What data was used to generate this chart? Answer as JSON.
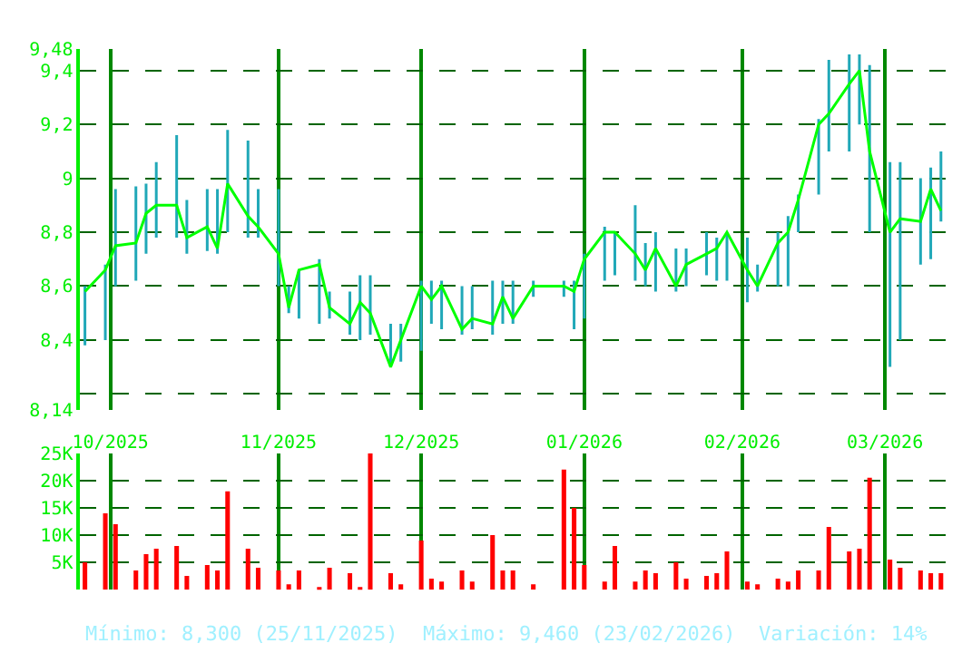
{
  "chart_data": [
    {
      "type": "line",
      "tick_labels": "y",
      "grid": true,
      "x": [
        "2025-09-26",
        "2025-09-30",
        "2025-10-02",
        "2025-10-06",
        "2025-10-08",
        "2025-10-10",
        "2025-10-14",
        "2025-10-16",
        "2025-10-20",
        "2025-10-22",
        "2025-10-24",
        "2025-10-28",
        "2025-10-30",
        "2025-11-03",
        "2025-11-05",
        "2025-11-07",
        "2025-11-11",
        "2025-11-13",
        "2025-11-17",
        "2025-11-19",
        "2025-11-21",
        "2025-11-25",
        "2025-11-27",
        "2025-12-01",
        "2025-12-03",
        "2025-12-05",
        "2025-12-09",
        "2025-12-11",
        "2025-12-15",
        "2025-12-17",
        "2025-12-19",
        "2025-12-23",
        "2025-12-29",
        "2025-12-31",
        "2026-01-02",
        "2026-01-06",
        "2026-01-08",
        "2026-01-12",
        "2026-01-14",
        "2026-01-16",
        "2026-01-20",
        "2026-01-22",
        "2026-01-26",
        "2026-01-28",
        "2026-01-30",
        "2026-02-03",
        "2026-02-05",
        "2026-02-09",
        "2026-02-11",
        "2026-02-13",
        "2026-02-17",
        "2026-02-19",
        "2026-02-23",
        "2026-02-25",
        "2026-02-27",
        "2026-03-03",
        "2026-03-05",
        "2026-03-09",
        "2026-03-11",
        "2026-03-13"
      ],
      "series": [
        {
          "color": "#00ff00",
          "values": [
            8.58,
            8.66,
            8.75,
            8.76,
            8.87,
            8.9,
            8.9,
            8.78,
            8.82,
            8.74,
            8.98,
            8.86,
            8.82,
            8.72,
            8.52,
            8.66,
            8.68,
            8.52,
            8.46,
            8.54,
            8.5,
            8.3,
            8.4,
            8.6,
            8.55,
            8.6,
            8.44,
            8.48,
            8.46,
            8.56,
            8.48,
            8.6,
            8.6,
            8.58,
            8.7,
            8.8,
            8.8,
            8.72,
            8.66,
            8.74,
            8.6,
            8.68,
            8.72,
            8.74,
            8.8,
            8.66,
            8.6,
            8.76,
            8.8,
            8.92,
            9.2,
            9.24,
            9.35,
            9.4,
            9.1,
            8.8,
            8.85,
            8.84,
            8.96,
            8.88
          ],
          "errors": [
            [
              8.38,
              8.6
            ],
            [
              8.4,
              8.68
            ],
            [
              8.6,
              8.96
            ],
            [
              8.62,
              8.97
            ],
            [
              8.72,
              8.98
            ],
            [
              8.78,
              9.06
            ],
            [
              8.78,
              9.16
            ],
            [
              8.72,
              8.92
            ],
            [
              8.73,
              8.96
            ],
            [
              8.72,
              8.96
            ],
            [
              8.8,
              9.18
            ],
            [
              8.78,
              9.14
            ],
            [
              8.78,
              8.96
            ],
            [
              8.6,
              8.96
            ],
            [
              8.5,
              8.6
            ],
            [
              8.48,
              8.66
            ],
            [
              8.46,
              8.7
            ],
            [
              8.48,
              8.58
            ],
            [
              8.42,
              8.58
            ],
            [
              8.4,
              8.64
            ],
            [
              8.42,
              8.64
            ],
            [
              8.3,
              8.46
            ],
            [
              8.32,
              8.46
            ],
            [
              8.36,
              8.62
            ],
            [
              8.46,
              8.62
            ],
            [
              8.44,
              8.62
            ],
            [
              8.42,
              8.6
            ],
            [
              8.44,
              8.6
            ],
            [
              8.42,
              8.62
            ],
            [
              8.46,
              8.62
            ],
            [
              8.46,
              8.62
            ],
            [
              8.56,
              8.62
            ],
            [
              8.56,
              8.62
            ],
            [
              8.44,
              8.62
            ],
            [
              8.48,
              8.72
            ],
            [
              8.62,
              8.82
            ],
            [
              8.64,
              8.8
            ],
            [
              8.62,
              8.9
            ],
            [
              8.6,
              8.76
            ],
            [
              8.58,
              8.8
            ],
            [
              8.58,
              8.74
            ],
            [
              8.6,
              8.74
            ],
            [
              8.64,
              8.8
            ],
            [
              8.62,
              8.78
            ],
            [
              8.62,
              8.8
            ],
            [
              8.54,
              8.78
            ],
            [
              8.58,
              8.68
            ],
            [
              8.6,
              8.8
            ],
            [
              8.6,
              8.86
            ],
            [
              8.8,
              8.94
            ],
            [
              8.94,
              9.22
            ],
            [
              9.1,
              9.44
            ],
            [
              9.1,
              9.46
            ],
            [
              9.2,
              9.46
            ],
            [
              8.8,
              9.42
            ],
            [
              8.3,
              9.06
            ],
            [
              8.4,
              9.06
            ],
            [
              8.68,
              9.0
            ],
            [
              8.7,
              9.04
            ],
            [
              8.84,
              9.1
            ]
          ]
        }
      ],
      "xlim": [
        "2025-09-25",
        "2026-03-16"
      ],
      "xticks": [
        {
          "value": "2025-10-01",
          "label": null
        },
        {
          "value": "2025-11-03",
          "label": null
        },
        {
          "value": "2025-12-01",
          "label": null
        },
        {
          "value": "2026-01-02",
          "label": null
        },
        {
          "value": "2026-02-02",
          "label": null
        },
        {
          "value": "2026-03-02",
          "label": null
        }
      ],
      "ylim": [
        8.14,
        9.48
      ],
      "yticks": [
        {
          "value": 8.14,
          "label": "8,14"
        },
        {
          "value": 8.2,
          "label": null
        },
        {
          "value": 8.4,
          "label": "8,4"
        },
        {
          "value": 8.6,
          "label": "8,6"
        },
        {
          "value": 8.8,
          "label": "8,8"
        },
        9,
        {
          "value": 9.2,
          "label": "9,2"
        },
        {
          "value": 9.4,
          "label": "9,4"
        },
        {
          "value": 9.48,
          "label": "9,48"
        }
      ]
    },
    {
      "type": "bar",
      "grid": true,
      "color": "#ff0000",
      "x": [
        "2025-09-26",
        "2025-09-30",
        "2025-10-02",
        "2025-10-06",
        "2025-10-08",
        "2025-10-10",
        "2025-10-14",
        "2025-10-16",
        "2025-10-20",
        "2025-10-22",
        "2025-10-24",
        "2025-10-28",
        "2025-10-30",
        "2025-11-03",
        "2025-11-05",
        "2025-11-07",
        "2025-11-11",
        "2025-11-13",
        "2025-11-17",
        "2025-11-19",
        "2025-11-21",
        "2025-11-25",
        "2025-11-27",
        "2025-12-01",
        "2025-12-03",
        "2025-12-05",
        "2025-12-09",
        "2025-12-11",
        "2025-12-15",
        "2025-12-17",
        "2025-12-19",
        "2025-12-23",
        "2025-12-29",
        "2025-12-31",
        "2026-01-02",
        "2026-01-06",
        "2026-01-08",
        "2026-01-12",
        "2026-01-14",
        "2026-01-16",
        "2026-01-20",
        "2026-01-22",
        "2026-01-26",
        "2026-01-28",
        "2026-01-30",
        "2026-02-03",
        "2026-02-05",
        "2026-02-09",
        "2026-02-11",
        "2026-02-13",
        "2026-02-17",
        "2026-02-19",
        "2026-02-23",
        "2026-02-25",
        "2026-02-27",
        "2026-03-03",
        "2026-03-05",
        "2026-03-09",
        "2026-03-11",
        "2026-03-13"
      ],
      "values": [
        5000,
        14000,
        12000,
        3500,
        6500,
        7500,
        8000,
        2500,
        4500,
        3500,
        18000,
        7500,
        4000,
        3500,
        1000,
        3500,
        500,
        4000,
        3000,
        500,
        25000,
        3000,
        1000,
        9000,
        2000,
        1500,
        3500,
        1500,
        10000,
        3500,
        3500,
        1000,
        22000,
        15000,
        4500,
        1500,
        8000,
        1500,
        3500,
        3000,
        5000,
        2000,
        2500,
        3000,
        7000,
        1500,
        1000,
        2000,
        1500,
        3500,
        3500,
        11500,
        7000,
        7500,
        20500,
        5500,
        4000,
        3500,
        3000,
        3000
      ],
      "xlim": [
        "2025-09-25",
        "2026-03-16"
      ],
      "xticks": [
        {
          "value": "2025-10-01",
          "label": "10/2025"
        },
        {
          "value": "2025-11-03",
          "label": "11/2025"
        },
        {
          "value": "2025-12-01",
          "label": "12/2025"
        },
        {
          "value": "2026-01-02",
          "label": "01/2026"
        },
        {
          "value": "2026-02-02",
          "label": "02/2026"
        },
        {
          "value": "2026-03-02",
          "label": "03/2026"
        }
      ],
      "ylim": [
        0,
        25000
      ],
      "yticks": [
        {
          "value": 5000,
          "label": "5K"
        },
        {
          "value": 10000,
          "label": "10K"
        },
        {
          "value": 15000,
          "label": "15K"
        },
        {
          "value": 20000,
          "label": "20K"
        },
        {
          "value": 25000,
          "label": "25K"
        }
      ],
      "annotations": [
        "Mínimo: 8,300 (25/11/2025)",
        "Máximo: 9,460 (23/02/2026)",
        "Variación: 14%"
      ]
    }
  ]
}
